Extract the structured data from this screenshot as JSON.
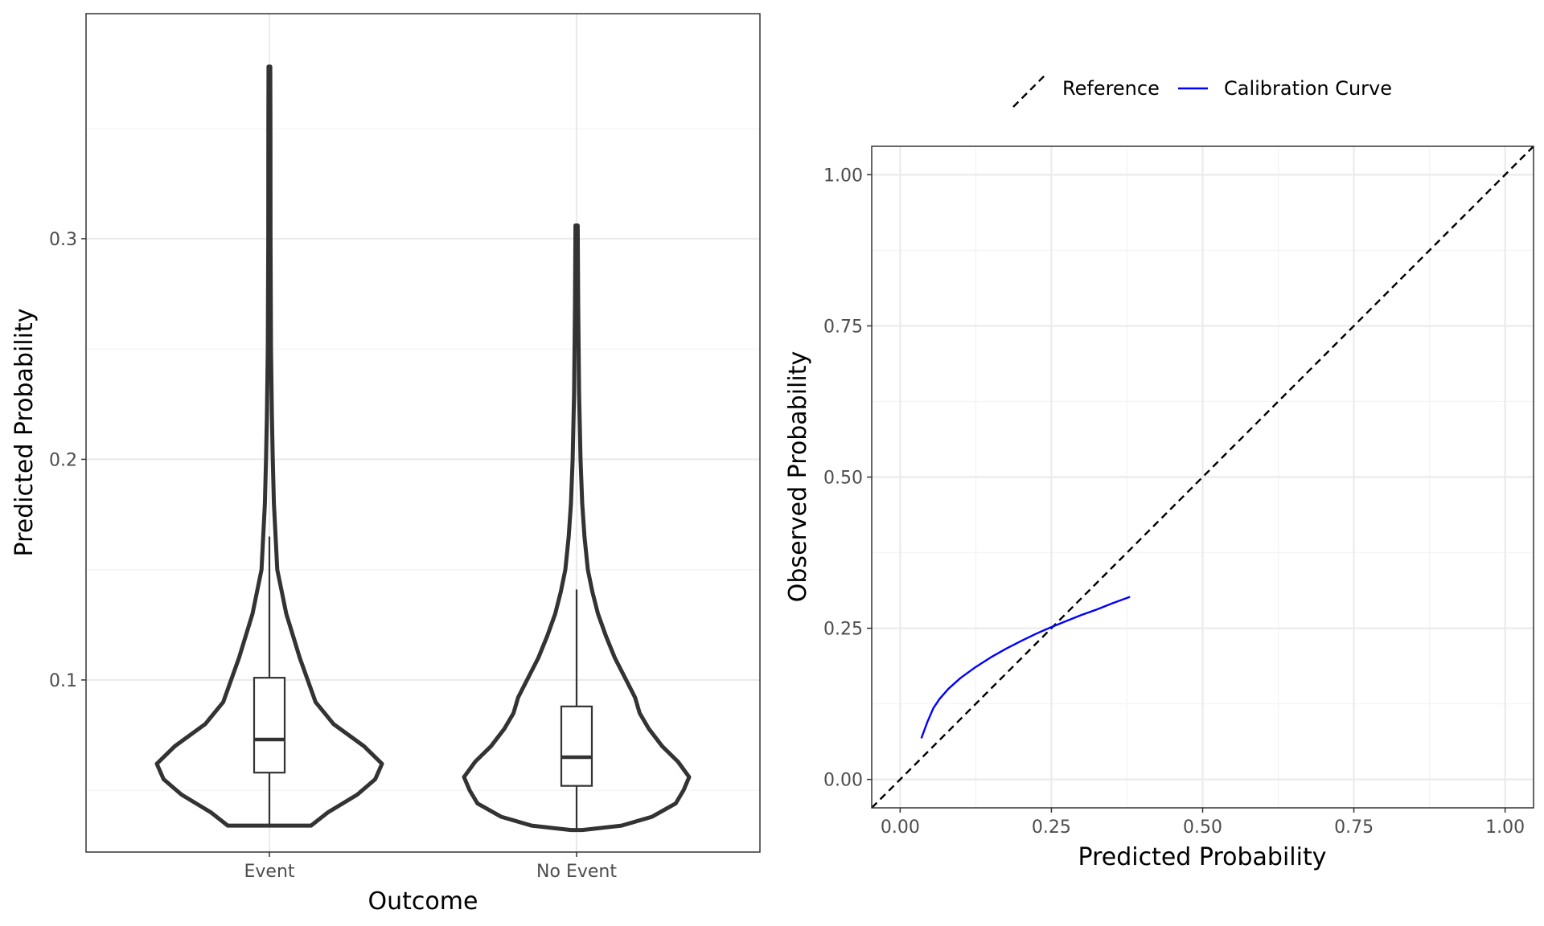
{
  "chart_data": [
    {
      "type": "violin",
      "title": "",
      "xlabel": "Outcome",
      "ylabel": "Predicted Probability",
      "categories": [
        "Event",
        "No Event"
      ],
      "ylim": [
        0.022,
        0.402
      ],
      "yticks": [
        0.1,
        0.2,
        0.3
      ],
      "ytick_labels": [
        "0.1",
        "0.2",
        "0.3"
      ],
      "grid": true,
      "distributions": [
        {
          "name": "Event",
          "min": 0.034,
          "max": 0.378,
          "box": {
            "q1": 0.058,
            "median": 0.073,
            "q3": 0.101,
            "whisker_low": 0.034,
            "whisker_high": 0.165
          },
          "density_profile": [
            [
              0.034,
              0.37
            ],
            [
              0.04,
              0.52
            ],
            [
              0.048,
              0.78
            ],
            [
              0.055,
              0.94
            ],
            [
              0.062,
              1.0
            ],
            [
              0.07,
              0.84
            ],
            [
              0.08,
              0.57
            ],
            [
              0.09,
              0.41
            ],
            [
              0.1,
              0.34
            ],
            [
              0.11,
              0.27
            ],
            [
              0.12,
              0.21
            ],
            [
              0.13,
              0.15
            ],
            [
              0.14,
              0.11
            ],
            [
              0.15,
              0.07
            ],
            [
              0.165,
              0.055
            ],
            [
              0.18,
              0.04
            ],
            [
              0.2,
              0.03
            ],
            [
              0.22,
              0.022
            ],
            [
              0.25,
              0.014
            ],
            [
              0.3,
              0.01
            ],
            [
              0.35,
              0.009
            ],
            [
              0.378,
              0.008
            ]
          ]
        },
        {
          "name": "No Event",
          "min": 0.032,
          "max": 0.306,
          "box": {
            "q1": 0.052,
            "median": 0.065,
            "q3": 0.088,
            "whisker_low": 0.032,
            "whisker_high": 0.141
          },
          "density_profile": [
            [
              0.032,
              0.05
            ],
            [
              0.034,
              0.4
            ],
            [
              0.038,
              0.67
            ],
            [
              0.044,
              0.88
            ],
            [
              0.05,
              0.95
            ],
            [
              0.056,
              1.0
            ],
            [
              0.063,
              0.9
            ],
            [
              0.07,
              0.76
            ],
            [
              0.078,
              0.64
            ],
            [
              0.085,
              0.56
            ],
            [
              0.092,
              0.52
            ],
            [
              0.1,
              0.44
            ],
            [
              0.11,
              0.34
            ],
            [
              0.12,
              0.26
            ],
            [
              0.13,
              0.19
            ],
            [
              0.14,
              0.14
            ],
            [
              0.15,
              0.1
            ],
            [
              0.165,
              0.07
            ],
            [
              0.18,
              0.05
            ],
            [
              0.2,
              0.035
            ],
            [
              0.23,
              0.022
            ],
            [
              0.27,
              0.014
            ],
            [
              0.306,
              0.01
            ]
          ]
        }
      ]
    },
    {
      "type": "line",
      "title": "",
      "xlabel": "Predicted Probability",
      "ylabel": "Observed Probability",
      "xlim": [
        -0.047,
        1.047
      ],
      "ylim": [
        -0.047,
        1.047
      ],
      "xticks": [
        0,
        0.25,
        0.5,
        0.75,
        1
      ],
      "xtick_labels": [
        "0.00",
        "0.25",
        "0.50",
        "0.75",
        "1.00"
      ],
      "yticks": [
        0,
        0.25,
        0.5,
        0.75,
        1
      ],
      "ytick_labels": [
        "0.00",
        "0.25",
        "0.50",
        "0.75",
        "1.00"
      ],
      "grid": true,
      "legend": {
        "position": "top",
        "entries": [
          "Reference",
          "Calibration Curve"
        ]
      },
      "series": [
        {
          "name": "Reference",
          "color": "#000000",
          "style": "dashed",
          "x": [
            -0.047,
            1.047
          ],
          "y": [
            -0.047,
            1.047
          ]
        },
        {
          "name": "Calibration Curve",
          "color": "#0000ff",
          "style": "solid",
          "x": [
            0.035,
            0.045,
            0.055,
            0.065,
            0.08,
            0.1,
            0.125,
            0.15,
            0.175,
            0.2,
            0.225,
            0.25,
            0.275,
            0.3,
            0.325,
            0.35,
            0.38
          ],
          "y": [
            0.068,
            0.095,
            0.118,
            0.133,
            0.15,
            0.168,
            0.186,
            0.202,
            0.216,
            0.229,
            0.241,
            0.252,
            0.262,
            0.272,
            0.281,
            0.291,
            0.302
          ]
        }
      ]
    }
  ]
}
